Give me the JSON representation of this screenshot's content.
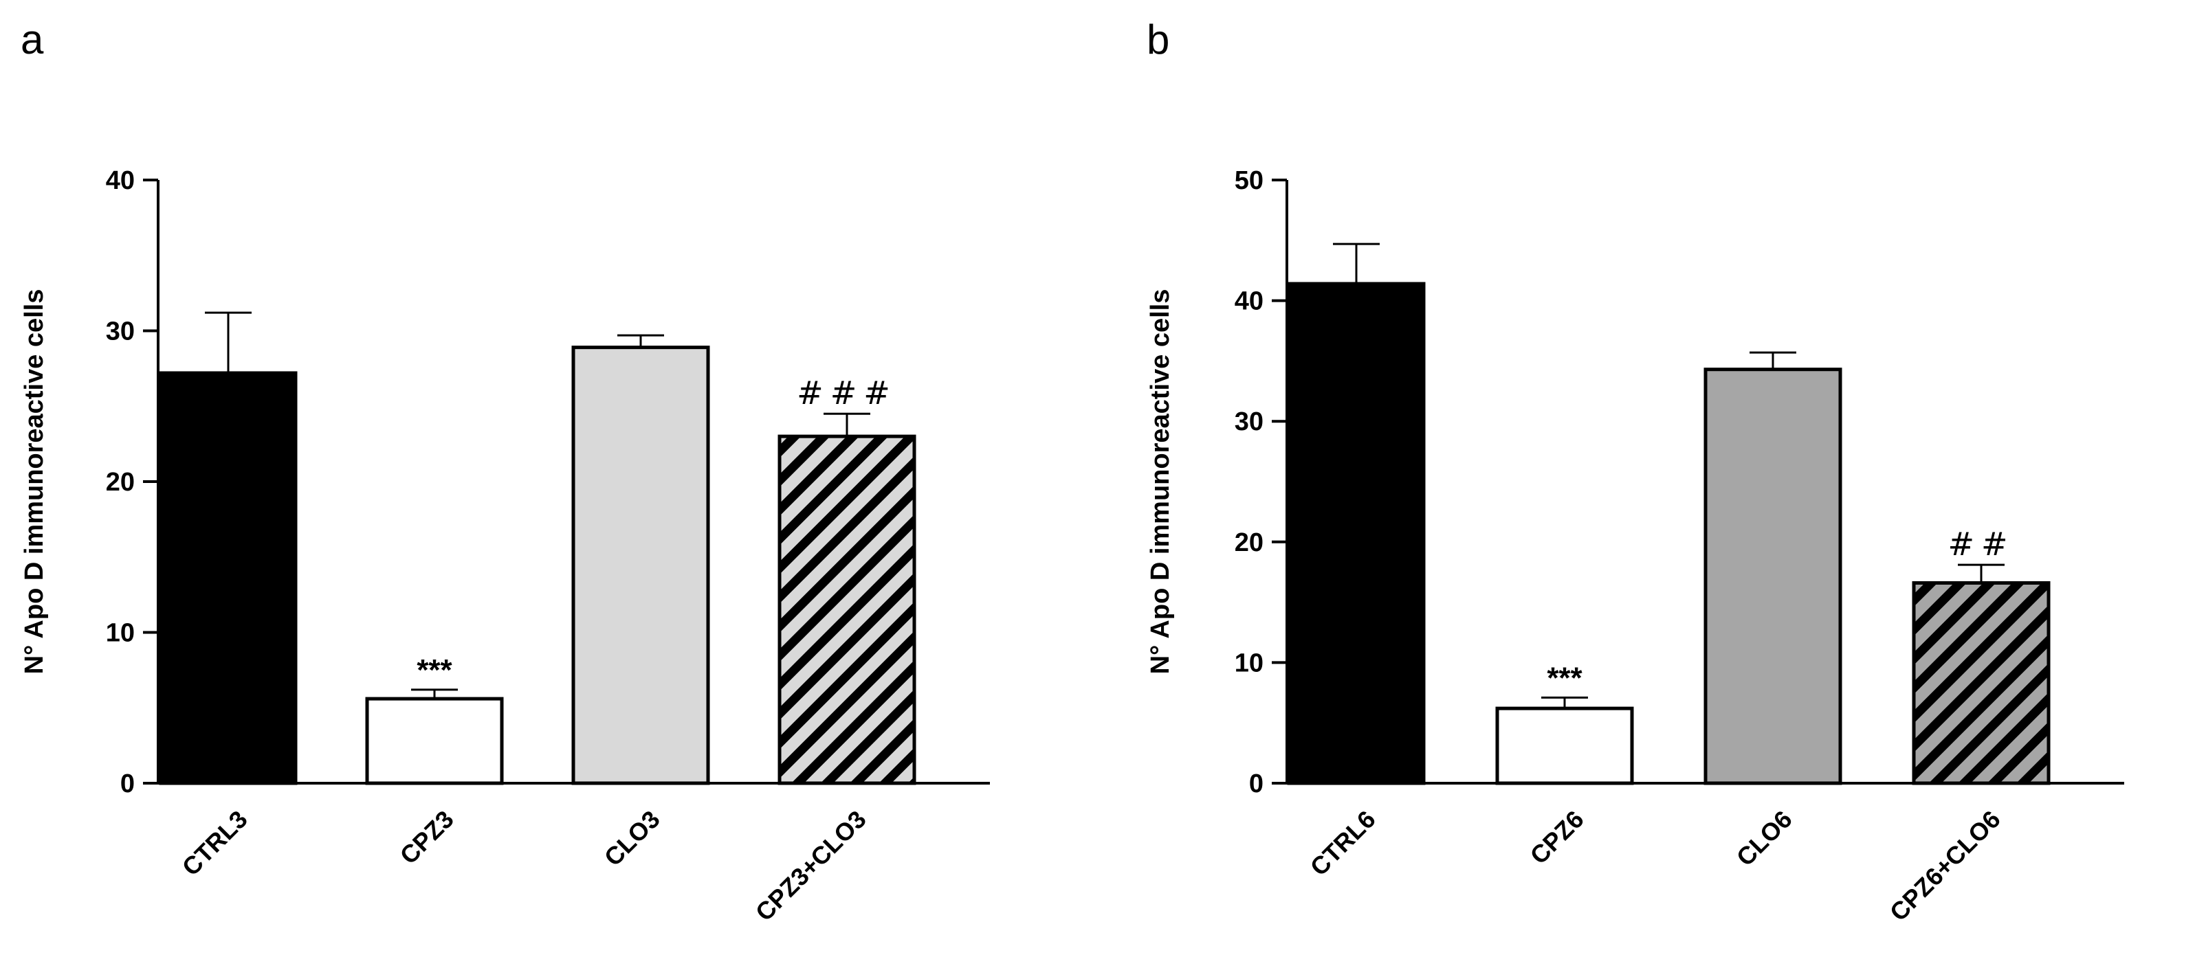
{
  "chart_data": [
    {
      "type": "bar",
      "panel_label": "a",
      "ylabel": "N° Apo D immunoreactive cells",
      "ylim": [
        0,
        40
      ],
      "yticks": [
        0,
        10,
        20,
        30,
        40
      ],
      "categories": [
        "CTRL3",
        "CPZ3",
        "CLO3",
        "CPZ3+CLO3"
      ],
      "values": [
        27.2,
        5.6,
        28.9,
        23.0
      ],
      "errors": [
        4.0,
        0.6,
        0.8,
        1.5
      ],
      "fills": [
        "#000000",
        "#ffffff",
        "#d9d9d9",
        "hatch-light"
      ],
      "annotations": [
        "",
        "***",
        "",
        "###"
      ]
    },
    {
      "type": "bar",
      "panel_label": "b",
      "ylabel": "N° Apo D immunoreactive cells",
      "ylim": [
        0,
        50
      ],
      "yticks": [
        0,
        10,
        20,
        30,
        40,
        50
      ],
      "categories": [
        "CTRL6",
        "CPZ6",
        "CLO6",
        "CPZ6+CLO6"
      ],
      "values": [
        41.4,
        6.2,
        34.3,
        16.6
      ],
      "errors": [
        3.3,
        0.9,
        1.4,
        1.5
      ],
      "fills": [
        "#000000",
        "#ffffff",
        "#a6a6a6",
        "hatch-dark"
      ],
      "annotations": [
        "",
        "***",
        "",
        "##"
      ]
    }
  ]
}
